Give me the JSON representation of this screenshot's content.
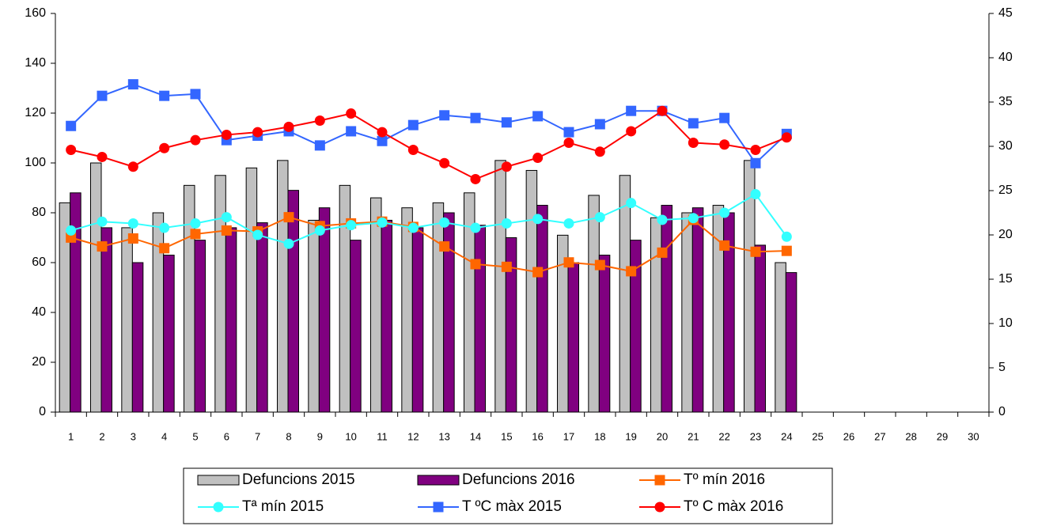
{
  "chart_data": {
    "type": "bar-line",
    "categories": [
      "1",
      "2",
      "3",
      "4",
      "5",
      "6",
      "7",
      "8",
      "9",
      "10",
      "11",
      "12",
      "13",
      "14",
      "15",
      "16",
      "17",
      "18",
      "19",
      "20",
      "21",
      "22",
      "23",
      "24",
      "25",
      "26",
      "27",
      "28",
      "29",
      "30"
    ],
    "ylim": [
      0,
      160
    ],
    "yticks": [
      0,
      20,
      40,
      60,
      80,
      100,
      120,
      140,
      160
    ],
    "y2lim": [
      0,
      45
    ],
    "y2ticks": [
      0,
      5,
      10,
      15,
      20,
      25,
      30,
      35,
      40,
      45
    ],
    "series": [
      {
        "name": "Defuncions 2015",
        "kind": "bar",
        "color": "#c0c0c0",
        "values": [
          84,
          100,
          74,
          80,
          91,
          95,
          98,
          101,
          77,
          91,
          86,
          82,
          84,
          88,
          101,
          97,
          71,
          87,
          95,
          78,
          80,
          83,
          101,
          60,
          null,
          null,
          null,
          null,
          null,
          null
        ]
      },
      {
        "name": "Defuncions 2016",
        "kind": "bar",
        "color": "#800080",
        "values": [
          88,
          74,
          60,
          63,
          69,
          74,
          76,
          89,
          82,
          69,
          77,
          74,
          80,
          75,
          70,
          83,
          60,
          63,
          69,
          83,
          82,
          80,
          67,
          56,
          null,
          null,
          null,
          null,
          null,
          null
        ]
      },
      {
        "name": "Tº mín 2016",
        "kind": "line",
        "axis": "y2",
        "marker": "square",
        "color": "#ff6600",
        "values": [
          19.7,
          18.7,
          19.6,
          18.5,
          20.1,
          20.5,
          20.4,
          22.0,
          21.0,
          21.3,
          21.5,
          20.9,
          18.7,
          16.7,
          16.4,
          15.8,
          16.9,
          16.6,
          15.9,
          18.0,
          21.7,
          18.8,
          18.1,
          18.2,
          null,
          null,
          null,
          null,
          null,
          null
        ]
      },
      {
        "name": "Tª mín 2015",
        "kind": "line",
        "axis": "y2",
        "marker": "circle",
        "color": "#33ffff",
        "values": [
          20.5,
          21.5,
          21.3,
          20.8,
          21.3,
          22.0,
          20.0,
          19.0,
          20.5,
          21.1,
          21.4,
          20.8,
          21.4,
          20.8,
          21.3,
          21.8,
          21.3,
          22.0,
          23.6,
          21.7,
          21.9,
          22.5,
          24.6,
          19.8,
          null,
          null,
          null,
          null,
          null,
          null
        ]
      },
      {
        "name": "T ºC màx 2015",
        "kind": "line",
        "axis": "y2",
        "marker": "square",
        "color": "#3366ff",
        "values": [
          32.3,
          35.7,
          37.0,
          35.7,
          35.9,
          30.7,
          31.2,
          31.7,
          30.1,
          31.7,
          30.6,
          32.4,
          33.5,
          33.2,
          32.7,
          33.4,
          31.6,
          32.5,
          34.0,
          34.0,
          32.6,
          33.2,
          28.1,
          31.4,
          null,
          null,
          null,
          null,
          null,
          null
        ]
      },
      {
        "name": "Tº C màx 2016",
        "kind": "line",
        "axis": "y2",
        "marker": "circle",
        "color": "#ff0000",
        "values": [
          29.6,
          28.8,
          27.7,
          29.8,
          30.7,
          31.3,
          31.6,
          32.2,
          32.9,
          33.7,
          31.6,
          29.6,
          28.1,
          26.3,
          27.7,
          28.7,
          30.4,
          29.4,
          31.7,
          34.0,
          30.4,
          30.2,
          29.6,
          31.0,
          null,
          null,
          null,
          null,
          null,
          null
        ]
      }
    ]
  }
}
